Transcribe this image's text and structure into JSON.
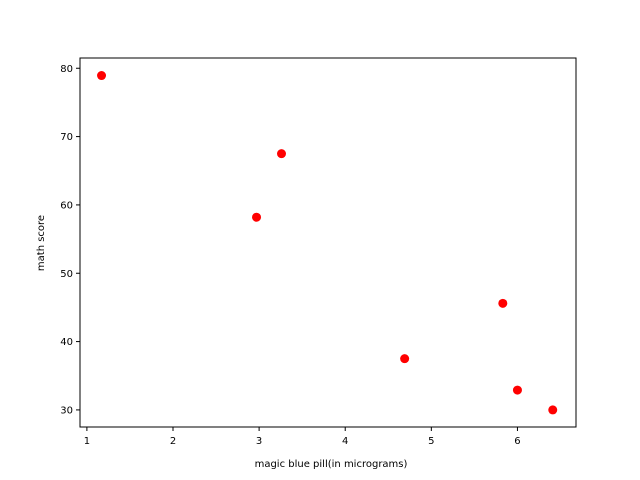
{
  "chart_data": {
    "type": "scatter",
    "title": "",
    "xlabel": "magic blue pill(in micrograms)",
    "ylabel": "math score",
    "xlim": [
      0.92,
      6.68
    ],
    "ylim": [
      27.5,
      81.5
    ],
    "xticks": [
      1,
      2,
      3,
      4,
      5,
      6
    ],
    "yticks": [
      30,
      40,
      50,
      60,
      70,
      80
    ],
    "grid": false,
    "marker_color": "#ff0000",
    "series": [
      {
        "points": [
          {
            "x": 1.17,
            "y": 78.93
          },
          {
            "x": 2.97,
            "y": 58.2
          },
          {
            "x": 3.26,
            "y": 67.5
          },
          {
            "x": 4.69,
            "y": 37.5
          },
          {
            "x": 5.83,
            "y": 45.6
          },
          {
            "x": 6.0,
            "y": 32.9
          },
          {
            "x": 6.41,
            "y": 30.0
          }
        ]
      }
    ]
  }
}
